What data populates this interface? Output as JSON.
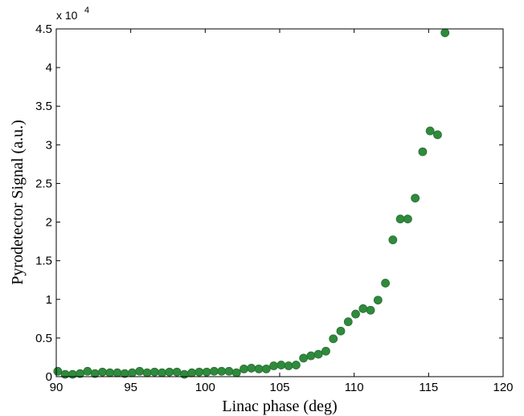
{
  "chart_data": {
    "type": "scatter",
    "xlabel": "Linac phase (deg)",
    "ylabel": "Pyrodetector Signal (a.u.)",
    "y_multiplier_label": "x 10",
    "y_multiplier_exponent": "4",
    "xlim": [
      90,
      120
    ],
    "ylim": [
      0,
      4.5
    ],
    "xticks": [
      "90",
      "95",
      "100",
      "105",
      "110",
      "115",
      "120"
    ],
    "yticks": [
      "0",
      "0.5",
      "1",
      "1.5",
      "2",
      "2.5",
      "3",
      "3.5",
      "4",
      "4.5"
    ],
    "marker_color": "#2e8b3c",
    "marker_edge_color": "#2a6b34",
    "grid": false,
    "series": [
      {
        "x": [
          90.1,
          90.6,
          91.1,
          91.6,
          92.1,
          92.6,
          93.1,
          93.6,
          94.1,
          94.6,
          95.1,
          95.6,
          96.1,
          96.6,
          97.1,
          97.6,
          98.1,
          98.6,
          99.1,
          99.6,
          100.1,
          100.6,
          101.1,
          101.6,
          102.1,
          102.6,
          103.1,
          103.6,
          104.1,
          104.6,
          105.1,
          105.6,
          106.1,
          106.6,
          107.1,
          107.6,
          108.1,
          108.6,
          109.1,
          109.6,
          110.1,
          110.6,
          111.1,
          111.6,
          112.1,
          112.6,
          113.1,
          113.6,
          114.1,
          114.6,
          115.1,
          115.6,
          116.1
        ],
        "y": [
          0.07,
          0.03,
          0.03,
          0.04,
          0.07,
          0.04,
          0.06,
          0.05,
          0.05,
          0.04,
          0.05,
          0.07,
          0.05,
          0.06,
          0.05,
          0.06,
          0.06,
          0.03,
          0.05,
          0.06,
          0.06,
          0.07,
          0.07,
          0.07,
          0.05,
          0.1,
          0.11,
          0.1,
          0.1,
          0.14,
          0.15,
          0.14,
          0.15,
          0.24,
          0.27,
          0.29,
          0.33,
          0.49,
          0.59,
          0.71,
          0.81,
          0.88,
          0.86,
          0.99,
          1.21,
          1.77,
          2.04,
          2.04,
          2.31,
          2.91,
          3.18,
          3.13,
          4.45
        ]
      }
    ]
  }
}
